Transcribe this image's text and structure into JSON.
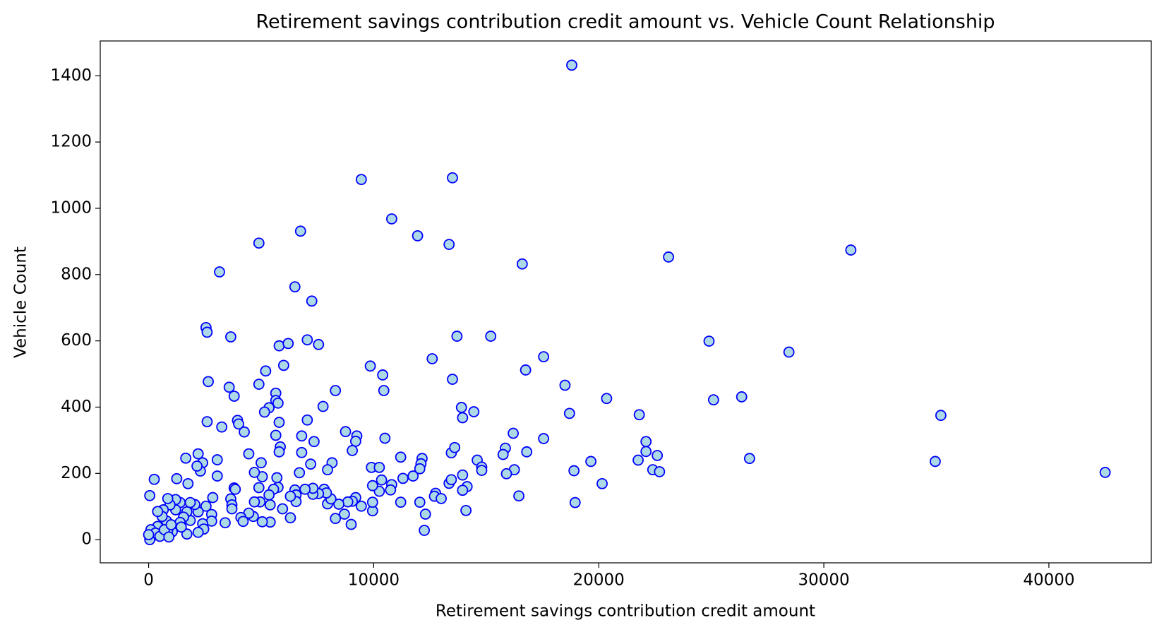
{
  "chart_data": {
    "type": "scatter",
    "title": "Retirement savings contribution credit amount vs. Vehicle Count Relationship",
    "x_label": "Retirement savings contribution credit amount",
    "y_label": "Vehicle Count",
    "xlim": [
      -2150,
      44550
    ],
    "ylim": [
      -70,
      1505
    ],
    "xticks": [
      0,
      10000,
      20000,
      30000,
      40000
    ],
    "yticks": [
      0,
      200,
      400,
      600,
      800,
      1000,
      1200,
      1400
    ],
    "grid": false,
    "marker_fill": "#add8e6",
    "marker_edge": "#0000ff",
    "x": [
      18800,
      9450,
      13500,
      10800,
      11950,
      13350,
      4900,
      6750,
      3150,
      16600,
      23100,
      31200,
      6500,
      7250,
      2550,
      2600,
      3650,
      13700,
      15200,
      5800,
      6200,
      7050,
      7550,
      24900,
      28450,
      17550,
      12600,
      9850,
      6000,
      5200,
      10400,
      16750,
      13500,
      2650,
      4900,
      18500,
      3580,
      10450,
      8300,
      3800,
      5650,
      5650,
      25100,
      26350,
      20350,
      13900,
      14450,
      7750,
      5350,
      5750,
      5150,
      13950,
      18700,
      21800,
      35200,
      2600,
      3950,
      4000,
      5800,
      4250,
      3250,
      7050,
      6800,
      8750,
      9250,
      9200,
      10500,
      16200,
      17550,
      5650,
      5850,
      7350,
      5800,
      6800,
      9050,
      11200,
      12150,
      15850,
      15750,
      16800,
      13450,
      13600,
      4450,
      2200,
      1650,
      2400,
      3050,
      5000,
      7200,
      8150,
      14600,
      14800,
      14800,
      12100,
      12050,
      9900,
      10250,
      19650,
      21750,
      22100,
      22100,
      22600,
      22400,
      22700,
      26700,
      34950,
      42500,
      18900,
      16250,
      15900,
      20150,
      16450,
      18950,
      14100,
      14150,
      13350,
      13950,
      13950,
      13450,
      12750,
      12700,
      13000,
      12300,
      12250,
      12050,
      11750,
      11300,
      11200,
      10800,
      10750,
      10350,
      10250,
      9950,
      9950,
      9950,
      9450,
      9200,
      9050,
      8850,
      9000,
      8700,
      8300,
      8450,
      7950,
      8100,
      7800,
      7900,
      7550,
      7300,
      7300,
      7950,
      6700,
      6950,
      6500,
      6550,
      6550,
      6300,
      6300,
      5950,
      5750,
      5700,
      5550,
      5350,
      5400,
      5400,
      5050,
      4950,
      4900,
      5050,
      4700,
      4700,
      4650,
      4450,
      4100,
      4200,
      3800,
      3850,
      3650,
      3700,
      3700,
      3400,
      3050,
      2850,
      2800,
      2800,
      2550,
      2400,
      2450,
      2300,
      2150,
      2200,
      2200,
      2050,
      1750,
      1850,
      1850,
      1700,
      1700,
      1550,
      1400,
      1400,
      1450,
      1250,
      1200,
      1200,
      1050,
      950,
      850,
      800,
      850,
      650,
      600,
      400,
      400,
      250,
      50,
      100,
      150,
      50,
      300,
      500,
      700,
      900,
      1000,
      0
    ],
    "y": [
      1432,
      1087,
      1092,
      968,
      917,
      891,
      895,
      931,
      808,
      832,
      853,
      874,
      763,
      720,
      640,
      626,
      612,
      614,
      614,
      585,
      592,
      603,
      589,
      599,
      566,
      552,
      546,
      524,
      526,
      509,
      497,
      512,
      484,
      477,
      469,
      466,
      460,
      450,
      450,
      433,
      442,
      420,
      422,
      431,
      426,
      399,
      386,
      402,
      398,
      412,
      385,
      368,
      381,
      377,
      375,
      356,
      360,
      349,
      354,
      325,
      340,
      361,
      313,
      326,
      313,
      297,
      306,
      321,
      305,
      315,
      280,
      296,
      265,
      263,
      269,
      249,
      245,
      276,
      257,
      265,
      262,
      278,
      259,
      259,
      246,
      232,
      241,
      232,
      228,
      232,
      240,
      219,
      209,
      229,
      214,
      218,
      218,
      236,
      240,
      296,
      266,
      254,
      211,
      205,
      245,
      236,
      203,
      208,
      211,
      199,
      169,
      132,
      112,
      88,
      160,
      170,
      149,
      195,
      181,
      140,
      131,
      124,
      77,
      28,
      113,
      192,
      185,
      113,
      166,
      150,
      180,
      146,
      87,
      113,
      163,
      101,
      127,
      116,
      114,
      46,
      77,
      64,
      107,
      108,
      123,
      152,
      141,
      139,
      137,
      155,
      211,
      202,
      152,
      150,
      135,
      115,
      131,
      66,
      93,
      158,
      187,
      152,
      135,
      105,
      53,
      54,
      114,
      157,
      190,
      203,
      114,
      70,
      80,
      67,
      55,
      156,
      152,
      123,
      105,
      93,
      51,
      192,
      127,
      76,
      56,
      101,
      48,
      32,
      207,
      222,
      84,
      22,
      106,
      169,
      112,
      58,
      84,
      17,
      68,
      112,
      52,
      38,
      184,
      121,
      90,
      24,
      105,
      124,
      56,
      30,
      90,
      70,
      85,
      40,
      182,
      133,
      30,
      10,
      0,
      20,
      10,
      30,
      8,
      45,
      15
    ]
  }
}
